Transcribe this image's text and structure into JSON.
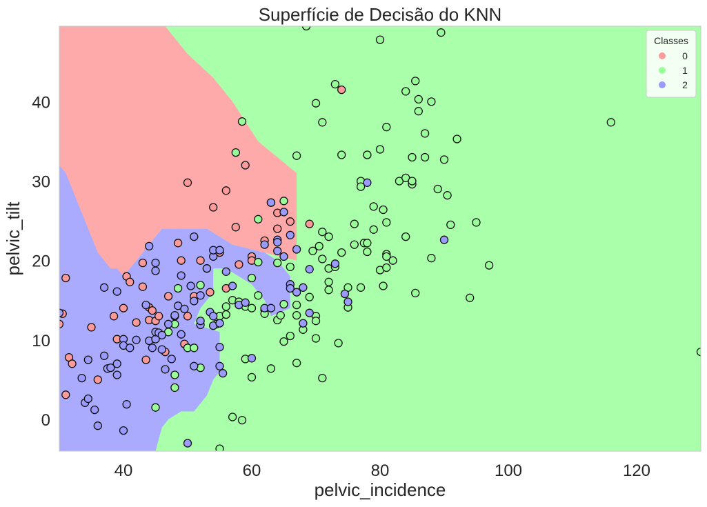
{
  "chart_data": {
    "type": "scatter",
    "title": "Superfície de Decisão do KNN",
    "xlabel": "pelvic_incidence",
    "ylabel": "pelvic_tilt",
    "xlim": [
      30,
      130
    ],
    "ylim": [
      -4,
      49.5
    ],
    "xticks": [
      40,
      60,
      80,
      100,
      120
    ],
    "yticks": [
      0,
      10,
      20,
      30,
      40
    ],
    "grid": false,
    "background": "decision-regions",
    "legend": {
      "title": "Classes",
      "placement": "top-right",
      "entries": [
        {
          "label": "0",
          "color": "#ff9a9a"
        },
        {
          "label": "1",
          "color": "#99ff99"
        },
        {
          "label": "2",
          "color": "#9a9aff"
        }
      ]
    },
    "region_colors": {
      "0": "#ffaaaa",
      "1": "#aaffaa",
      "2": "#aaaaff"
    },
    "point_colors": {
      "0": "#ff9a9a",
      "1": "#99ff99",
      "2": "#9a9aff"
    },
    "regions": [
      {
        "class": 0,
        "polygon": [
          [
            30,
            49.5
          ],
          [
            46.5,
            49.5
          ],
          [
            50,
            46
          ],
          [
            54,
            43
          ],
          [
            57,
            40
          ],
          [
            61,
            35
          ],
          [
            67,
            31
          ],
          [
            67,
            20
          ],
          [
            62,
            21
          ],
          [
            57,
            22
          ],
          [
            55,
            23
          ],
          [
            53,
            24
          ],
          [
            50,
            24
          ],
          [
            46,
            24
          ],
          [
            44,
            22
          ],
          [
            42,
            20
          ],
          [
            40,
            18
          ],
          [
            38,
            16
          ],
          [
            35,
            14
          ],
          [
            33,
            12
          ],
          [
            31,
            9
          ],
          [
            30,
            6
          ]
        ]
      },
      {
        "class": 2,
        "polygon": [
          [
            30,
            32
          ],
          [
            31,
            31
          ],
          [
            32,
            29
          ],
          [
            34,
            25
          ],
          [
            35,
            23
          ],
          [
            36,
            21
          ],
          [
            37,
            20
          ],
          [
            38,
            19
          ],
          [
            39,
            19
          ],
          [
            40,
            18
          ],
          [
            42,
            20
          ],
          [
            44,
            22
          ],
          [
            46,
            24
          ],
          [
            50,
            24
          ],
          [
            53,
            24
          ],
          [
            55,
            23
          ],
          [
            57,
            22
          ],
          [
            62,
            21
          ],
          [
            64,
            20
          ],
          [
            66,
            18
          ],
          [
            66,
            14
          ],
          [
            63,
            13
          ],
          [
            62,
            15
          ],
          [
            60,
            17
          ],
          [
            58,
            18
          ],
          [
            56,
            19
          ],
          [
            54,
            19
          ],
          [
            54,
            16
          ],
          [
            52,
            14
          ],
          [
            51,
            12
          ],
          [
            55,
            11
          ],
          [
            55,
            8
          ],
          [
            55,
            6
          ],
          [
            54,
            5
          ],
          [
            53,
            3
          ],
          [
            52,
            2
          ],
          [
            51,
            1
          ],
          [
            49,
            1
          ],
          [
            47,
            0
          ],
          [
            46,
            -1
          ],
          [
            45,
            -4
          ],
          [
            30,
            -4
          ]
        ]
      }
    ],
    "series": [
      {
        "class": 0,
        "points": [
          [
            30,
            12
          ],
          [
            31,
            17.8
          ],
          [
            30.5,
            13.3
          ],
          [
            31.5,
            7.8
          ],
          [
            32,
            7
          ],
          [
            31,
            3.1
          ],
          [
            35,
            11.6
          ],
          [
            36,
            5
          ],
          [
            38.5,
            13
          ],
          [
            39,
            10.1
          ],
          [
            40,
            14
          ],
          [
            40.5,
            18
          ],
          [
            41,
            17.3
          ],
          [
            42,
            12.2
          ],
          [
            43,
            16.7
          ],
          [
            43,
            19.7
          ],
          [
            43.5,
            7.5
          ],
          [
            44,
            14.1
          ],
          [
            44,
            12.5
          ],
          [
            44.5,
            13.7
          ],
          [
            45,
            12.4
          ],
          [
            45.5,
            13
          ],
          [
            46.5,
            8.5
          ],
          [
            47,
            15.5
          ],
          [
            48,
            13
          ],
          [
            48.5,
            22.2
          ],
          [
            49,
            20
          ],
          [
            49.5,
            9.5
          ],
          [
            50,
            13
          ],
          [
            50,
            29.8
          ],
          [
            51,
            15.5
          ],
          [
            52,
            20
          ],
          [
            53,
            19
          ],
          [
            53.5,
            16
          ],
          [
            54,
            26.7
          ],
          [
            55,
            21
          ],
          [
            56,
            28.8
          ],
          [
            56,
            16.5
          ],
          [
            57.5,
            24.2
          ],
          [
            58,
            19.5
          ],
          [
            59,
            32
          ],
          [
            60,
            20.5
          ],
          [
            60,
            20
          ],
          [
            62,
            22.5
          ],
          [
            64,
            24
          ],
          [
            64,
            26
          ],
          [
            66,
            24.9
          ],
          [
            69,
            24.6
          ],
          [
            74,
            41.5
          ],
          [
            63,
            27.3
          ]
        ]
      },
      {
        "class": 1,
        "points": [
          [
            45,
            1.5
          ],
          [
            47,
            11
          ],
          [
            48,
            12
          ],
          [
            48,
            4
          ],
          [
            48,
            5.6
          ],
          [
            48.5,
            16.5
          ],
          [
            50,
            9
          ],
          [
            51,
            9
          ],
          [
            52,
            6.5
          ],
          [
            52,
            16.9
          ],
          [
            54.5,
            12
          ],
          [
            55,
            -3.7
          ],
          [
            55,
            13
          ],
          [
            56,
            13.2
          ],
          [
            56,
            14.2
          ],
          [
            57,
            0.3
          ],
          [
            57,
            15
          ],
          [
            57.5,
            33.6
          ],
          [
            58,
            14.8
          ],
          [
            58.5,
            -0.1
          ],
          [
            58.5,
            37.5
          ],
          [
            59,
            7.6
          ],
          [
            59,
            14.2
          ],
          [
            60,
            14
          ],
          [
            60,
            17.8
          ],
          [
            60,
            5.3
          ],
          [
            61,
            19.8
          ],
          [
            61,
            15.6
          ],
          [
            61,
            25.2
          ],
          [
            62,
            13.8
          ],
          [
            62,
            13.3
          ],
          [
            63,
            6.4
          ],
          [
            64,
            19.7
          ],
          [
            64,
            12.5
          ],
          [
            64.5,
            13.1
          ],
          [
            65,
            14.5
          ],
          [
            65,
            9.8
          ],
          [
            65,
            27.5
          ],
          [
            66,
            10.5
          ],
          [
            66,
            19.2
          ],
          [
            67,
            13.1
          ],
          [
            67,
            14.4
          ],
          [
            67,
            7.1
          ],
          [
            67,
            33.2
          ],
          [
            68,
            11.3
          ],
          [
            68.5,
            49.5
          ],
          [
            69.5,
            21.2
          ],
          [
            69,
            15.4
          ],
          [
            70,
            10.2
          ],
          [
            70,
            13
          ],
          [
            70,
            12.4
          ],
          [
            70,
            39.8
          ],
          [
            70.5,
            21.8
          ],
          [
            71,
            20.2
          ],
          [
            71,
            37.4
          ],
          [
            71,
            5.2
          ],
          [
            71,
            23.6
          ],
          [
            72,
            23
          ],
          [
            72,
            19
          ],
          [
            72,
            17.3
          ],
          [
            72,
            16.3
          ],
          [
            73,
            19.2
          ],
          [
            73,
            42.2
          ],
          [
            73.5,
            9.6
          ],
          [
            74,
            21
          ],
          [
            74,
            33.3
          ],
          [
            75,
            14.1
          ],
          [
            75,
            16.6
          ],
          [
            76,
            22
          ],
          [
            76,
            24.6
          ],
          [
            77,
            16.6
          ],
          [
            77,
            30
          ],
          [
            77,
            29.3
          ],
          [
            77.5,
            22.2
          ],
          [
            78,
            22.2
          ],
          [
            78,
            33.3
          ],
          [
            78,
            21.1
          ],
          [
            78,
            33.3
          ],
          [
            79,
            26.8
          ],
          [
            79,
            23.9
          ],
          [
            80,
            18.8
          ],
          [
            80,
            34
          ],
          [
            80,
            47.8
          ],
          [
            80.5,
            26.4
          ],
          [
            80.5,
            16.8
          ],
          [
            81,
            36.8
          ],
          [
            81,
            19.1
          ],
          [
            81,
            24.8
          ],
          [
            81,
            20.8
          ],
          [
            81,
            20.5
          ],
          [
            82,
            20
          ],
          [
            83,
            30
          ],
          [
            84,
            30.4
          ],
          [
            84,
            23
          ],
          [
            84,
            41.3
          ],
          [
            85,
            33
          ],
          [
            85,
            29.6
          ],
          [
            85,
            30
          ],
          [
            85.5,
            15.9
          ],
          [
            85.5,
            42.6
          ],
          [
            86,
            38.8
          ],
          [
            86,
            40.3
          ],
          [
            87,
            33
          ],
          [
            87,
            36
          ],
          [
            88,
            40
          ],
          [
            88,
            20.3
          ],
          [
            89,
            29
          ],
          [
            89.5,
            48.7
          ],
          [
            90,
            32.7
          ],
          [
            90.5,
            28.2
          ],
          [
            91,
            24.5
          ],
          [
            92,
            35.3
          ],
          [
            94,
            15.3
          ],
          [
            95,
            24.8
          ],
          [
            97,
            19.4
          ],
          [
            116,
            37.4
          ],
          [
            130,
            8.5
          ]
        ]
      },
      {
        "class": 2,
        "points": [
          [
            30,
            13.4
          ],
          [
            33.5,
            5.2
          ],
          [
            34.5,
            7.5
          ],
          [
            34,
            2.1
          ],
          [
            34.5,
            2.6
          ],
          [
            35.5,
            1.2
          ],
          [
            36,
            -0.8
          ],
          [
            37,
            16.6
          ],
          [
            37,
            8
          ],
          [
            37.5,
            6.4
          ],
          [
            38,
            6.5
          ],
          [
            39,
            5.6
          ],
          [
            39,
            7
          ],
          [
            39,
            16.1
          ],
          [
            40,
            10.1
          ],
          [
            40,
            9.3
          ],
          [
            40,
            -1.4
          ],
          [
            40.5,
            1.9
          ],
          [
            41,
            9
          ],
          [
            42,
            10
          ],
          [
            43.5,
            14.4
          ],
          [
            44,
            9.9
          ],
          [
            44,
            21.8
          ],
          [
            44.5,
            9
          ],
          [
            45,
            10.1
          ],
          [
            45,
            11
          ],
          [
            45,
            18.7
          ],
          [
            45,
            19.7
          ],
          [
            45.5,
            10.9
          ],
          [
            46,
            8.8
          ],
          [
            46,
            10.6
          ],
          [
            46.5,
            6.3
          ],
          [
            47,
            12
          ],
          [
            47.5,
            7.6
          ],
          [
            48,
            13.1
          ],
          [
            48.5,
            14.3
          ],
          [
            49,
            18.1
          ],
          [
            49,
            10.7
          ],
          [
            49.5,
            13.9
          ],
          [
            50,
            -3
          ],
          [
            50.5,
            16.8
          ],
          [
            51,
            6.7
          ],
          [
            51,
            23
          ],
          [
            51,
            14.9
          ],
          [
            52,
            11.9
          ],
          [
            52,
            15.6
          ],
          [
            52,
            12.4
          ],
          [
            53,
            19
          ],
          [
            53.5,
            13.5
          ],
          [
            54,
            13
          ],
          [
            54,
            11.8
          ],
          [
            54,
            20.5
          ],
          [
            54,
            21.3
          ],
          [
            55,
            21.3
          ],
          [
            55,
            12.1
          ],
          [
            55,
            6.7
          ],
          [
            55,
            9.1
          ],
          [
            55.5,
            5.8
          ],
          [
            56,
            18.6
          ],
          [
            57,
            16.8
          ],
          [
            58,
            14.4
          ],
          [
            59,
            14.7
          ],
          [
            60,
            7.7
          ],
          [
            62,
            22
          ],
          [
            62,
            14
          ],
          [
            63,
            14
          ],
          [
            63,
            27.3
          ],
          [
            64,
            22.6
          ],
          [
            64,
            22.3
          ],
          [
            64,
            21.2
          ],
          [
            65,
            20.5
          ],
          [
            65,
            26.1
          ],
          [
            66,
            23.2
          ],
          [
            66,
            17
          ],
          [
            66,
            16.5
          ],
          [
            67,
            21.4
          ],
          [
            67,
            16
          ],
          [
            68,
            12.1
          ],
          [
            68,
            16.6
          ],
          [
            69,
            18.9
          ],
          [
            69,
            13.4
          ],
          [
            73,
            19.6
          ],
          [
            74.5,
            15.8
          ],
          [
            75,
            14.8
          ],
          [
            78,
            29.8
          ],
          [
            90,
            22.6
          ]
        ]
      }
    ]
  }
}
